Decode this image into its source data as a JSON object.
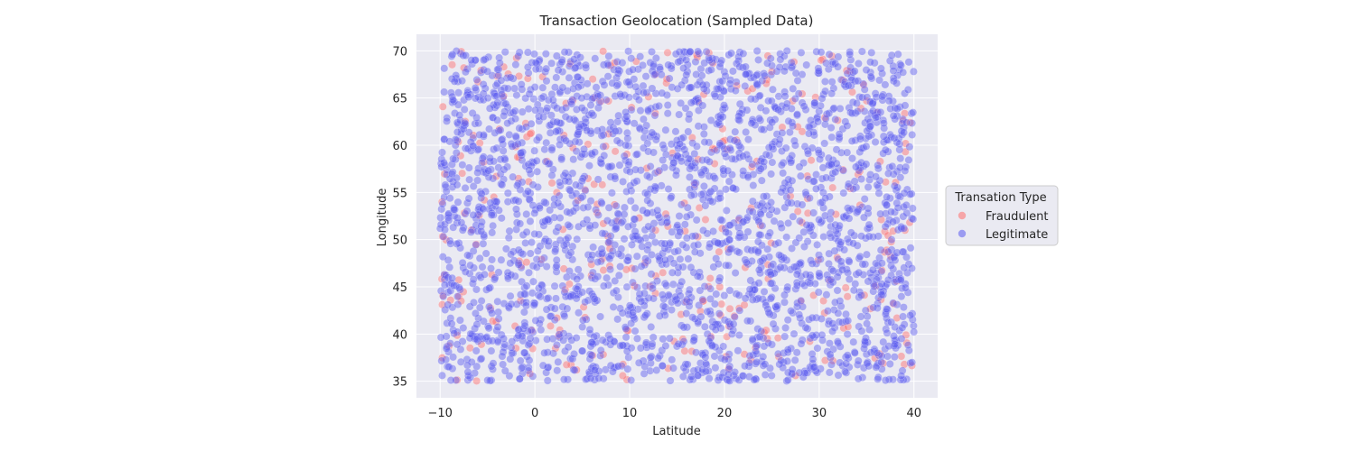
{
  "chart_data": {
    "type": "scatter",
    "title": "Transaction Geolocation (Sampled Data)",
    "xlabel": "Latitude",
    "ylabel": "Longitude",
    "xlim": [
      -12.5,
      42.5
    ],
    "ylim": [
      33.25,
      71.75
    ],
    "xticks": [
      -10,
      0,
      10,
      20,
      30,
      40
    ],
    "yticks": [
      35,
      40,
      45,
      50,
      55,
      60,
      65,
      70
    ],
    "grid": true,
    "background": "#eaeaf2",
    "legend": {
      "title": "Transation Type",
      "placement": "outside-right",
      "entries": [
        "Fraudulent",
        "Legitimate"
      ]
    },
    "series": [
      {
        "name": "Fraudulent",
        "color": "#ff6b6b",
        "x": [
          -9.8,
          -7.5,
          -6.2,
          -4.1,
          -2.0,
          -0.5,
          1.8,
          3.2,
          5.6,
          6.1,
          7.9,
          9.3,
          11.0,
          12.7,
          14.0,
          15.8,
          17.2,
          18.5,
          19.6,
          21.3,
          22.9,
          24.4,
          26.1,
          27.5,
          28.8,
          30.2,
          31.9,
          33.3,
          35.0,
          36.4,
          37.8,
          39.1,
          39.6,
          -8.9,
          -3.3,
          2.5,
          8.4,
          13.5,
          16.6,
          20.4,
          25.0,
          29.4,
          34.1,
          38.2,
          -5.4,
          0.7,
          4.4,
          10.2,
          23.8,
          32.5
        ],
        "y": [
          54.0,
          68.2,
          49.5,
          41.3,
          38.5,
          61.2,
          56.0,
          44.7,
          60.1,
          67.0,
          47.2,
          36.8,
          52.3,
          63.4,
          69.8,
          38.2,
          58.5,
          45.9,
          42.0,
          66.3,
          57.7,
          40.4,
          61.9,
          35.6,
          52.8,
          69.0,
          48.1,
          55.4,
          64.7,
          37.9,
          50.9,
          59.3,
          62.4,
          43.6,
          65.2,
          39.8,
          53.7,
          46.5,
          60.8,
          49.0,
          67.8,
          44.1,
          56.9,
          41.7,
          58.2,
          47.9,
          36.2,
          64.0,
          51.5,
          66.9
        ]
      },
      {
        "name": "Legitimate",
        "color": "#5a5af0",
        "x": [
          -9.5,
          -9.0,
          -8.2,
          -7.0,
          -6.5,
          -5.8,
          -4.9,
          -3.7,
          -2.6,
          -1.4,
          -0.2,
          0.9,
          2.1,
          3.5,
          4.8,
          6.0,
          7.3,
          8.6,
          9.9,
          11.4,
          12.2,
          13.8,
          15.1,
          16.3,
          17.7,
          19.0,
          20.8,
          22.0,
          23.4,
          24.9,
          26.5,
          27.9,
          29.0,
          30.7,
          32.0,
          33.6,
          34.8,
          36.1,
          37.3,
          38.6,
          39.8,
          -8.7,
          -4.4,
          1.2,
          5.9,
          10.7,
          18.1,
          25.6,
          31.3,
          37.0
        ],
        "y": [
          45.2,
          60.4,
          38.9,
          65.1,
          52.6,
          42.8,
          57.3,
          68.7,
          47.5,
          36.4,
          55.8,
          63.0,
          41.5,
          50.2,
          69.3,
          39.1,
          58.9,
          44.6,
          66.7,
          53.1,
          37.5,
          61.6,
          48.8,
          43.4,
          64.2,
          56.5,
          40.0,
          51.9,
          67.4,
          46.3,
          59.7,
          35.9,
          54.4,
          62.8,
          42.2,
          49.6,
          65.9,
          38.0,
          57.0,
          45.7,
          61.1,
          69.6,
          36.9,
          68.1,
          35.3,
          59.0,
          69.9,
          43.0,
          58.0,
          35.1
        ]
      }
    ],
    "density_note": ""
  }
}
